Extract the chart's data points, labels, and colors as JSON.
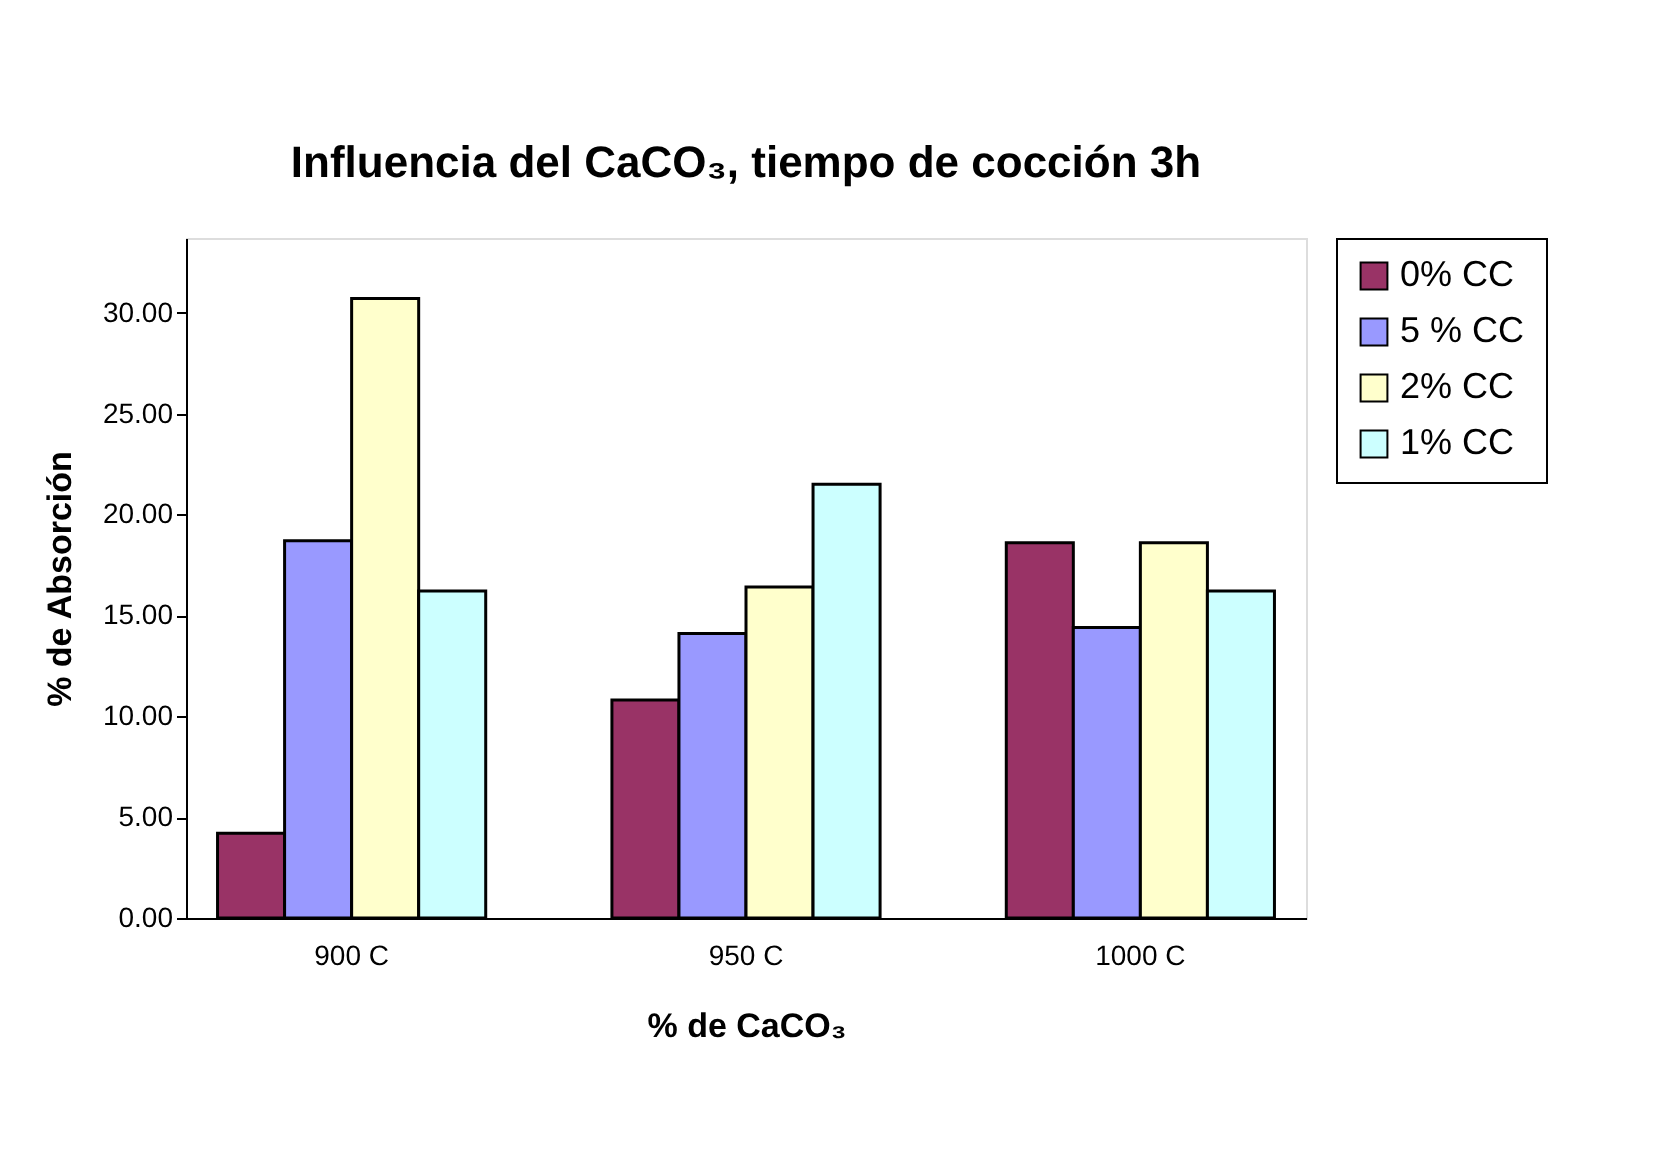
{
  "chart_data": {
    "type": "bar",
    "title": "Influencia del CaCO₃, tiempo de cocción 3h",
    "xlabel": "% de CaCO₃",
    "ylabel": "% de Absorción",
    "categories": [
      "900 C",
      "950 C",
      "1000 C"
    ],
    "series": [
      {
        "name": "0% CC",
        "color": "#993366",
        "values": [
          4.2,
          10.8,
          18.6
        ]
      },
      {
        "name": "5 % CC",
        "color": "#9999ff",
        "values": [
          18.7,
          14.1,
          14.4
        ]
      },
      {
        "name": "2% CC",
        "color": "#ffffcc",
        "values": [
          30.7,
          16.4,
          18.6
        ]
      },
      {
        "name": "1% CC",
        "color": "#ccffff",
        "values": [
          16.2,
          21.5,
          16.2
        ]
      }
    ],
    "ylim": [
      0,
      33.7
    ],
    "yticks": [
      {
        "value": 0,
        "label": "0.00"
      },
      {
        "value": 5,
        "label": "5.00"
      },
      {
        "value": 10,
        "label": "10.00"
      },
      {
        "value": 15,
        "label": "15.00"
      },
      {
        "value": 20,
        "label": "20.00"
      },
      {
        "value": 25,
        "label": "25.00"
      },
      {
        "value": 30,
        "label": "30.00"
      }
    ],
    "grid": false,
    "legend": "right"
  }
}
